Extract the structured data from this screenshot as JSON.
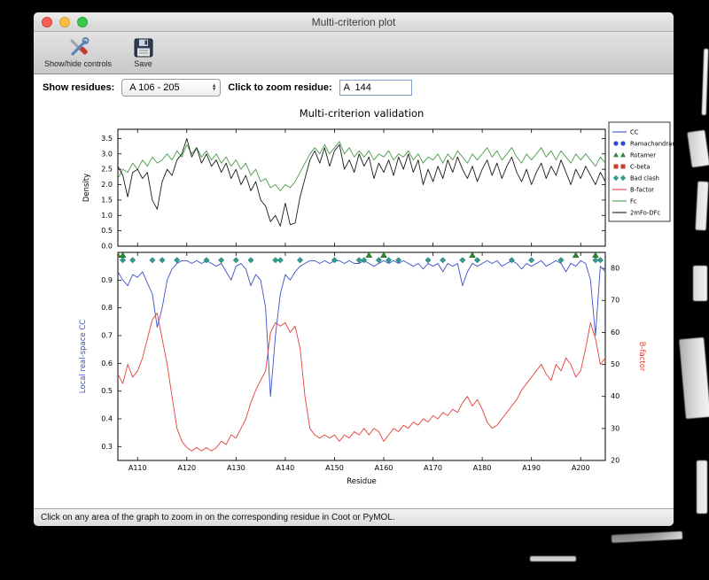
{
  "window": {
    "title": "Multi-criterion plot",
    "toolbar": {
      "show_hide_label": "Show/hide controls",
      "save_label": "Save"
    },
    "controls": {
      "show_residues_label": "Show residues:",
      "show_residues_value": "A 106 - 205",
      "zoom_residue_label": "Click to zoom residue:",
      "zoom_residue_value": "A  144"
    },
    "status_bar": "Click on any area of the graph to zoom in on the corresponding residue in Coot or PyMOL."
  },
  "chart_data": {
    "type": "line",
    "title": "Multi-criterion validation",
    "xlabel": "Residue",
    "x_start": 106,
    "x_end": 205,
    "x_tick_prefix": "A",
    "x_tick_values": [
      110,
      120,
      130,
      140,
      150,
      160,
      170,
      180,
      190,
      200
    ],
    "top_plot": {
      "ylabel": "Density",
      "ylim": [
        0,
        3.8
      ],
      "yticks": [
        0.0,
        0.5,
        1.0,
        1.5,
        2.0,
        2.5,
        3.0,
        3.5
      ],
      "series": [
        {
          "name": "Fc",
          "color": "#4a9c4a",
          "values": [
            2.2,
            2.5,
            2.4,
            2.7,
            2.5,
            2.8,
            2.6,
            2.9,
            2.7,
            2.8,
            3.0,
            2.8,
            3.1,
            2.9,
            3.3,
            3.0,
            3.2,
            2.9,
            3.1,
            2.8,
            3.0,
            2.7,
            2.9,
            2.6,
            2.8,
            2.5,
            2.7,
            2.3,
            2.5,
            2.1,
            2.2,
            1.9,
            2.0,
            1.8,
            2.0,
            1.9,
            2.1,
            2.4,
            2.7,
            3.0,
            3.2,
            3.0,
            3.3,
            3.0,
            3.2,
            3.4,
            3.0,
            3.2,
            2.9,
            3.1,
            2.9,
            3.1,
            2.8,
            3.0,
            2.9,
            3.1,
            2.8,
            3.0,
            2.9,
            3.1,
            2.8,
            3.0,
            2.7,
            2.9,
            2.8,
            3.0,
            2.7,
            3.0,
            2.8,
            3.1,
            2.9,
            2.7,
            3.0,
            2.8,
            3.0,
            3.2,
            2.9,
            3.1,
            2.8,
            3.0,
            3.2,
            2.9,
            2.7,
            3.0,
            2.8,
            3.0,
            3.2,
            2.9,
            3.1,
            2.8,
            3.1,
            2.9,
            2.7,
            3.0,
            2.8,
            3.0,
            2.8,
            2.6,
            2.9,
            2.7
          ]
        },
        {
          "name": "2mFo-DFc",
          "color": "#1a1a1a",
          "values": [
            2.6,
            2.3,
            1.6,
            2.4,
            2.5,
            2.2,
            2.4,
            1.5,
            1.2,
            2.1,
            2.5,
            2.3,
            2.8,
            3.0,
            3.5,
            2.9,
            3.2,
            2.7,
            3.0,
            2.6,
            2.8,
            2.4,
            2.7,
            2.2,
            2.5,
            2.0,
            2.3,
            1.8,
            2.1,
            1.5,
            1.3,
            0.8,
            1.0,
            0.65,
            1.4,
            0.7,
            0.75,
            1.6,
            2.2,
            2.8,
            3.1,
            2.7,
            3.2,
            2.6,
            3.1,
            3.3,
            2.5,
            2.8,
            2.4,
            3.0,
            2.6,
            2.9,
            2.2,
            2.7,
            2.4,
            2.8,
            2.3,
            2.9,
            2.5,
            3.0,
            2.4,
            2.8,
            2.0,
            2.5,
            2.1,
            2.6,
            2.2,
            2.8,
            2.4,
            2.9,
            2.5,
            2.2,
            2.6,
            2.1,
            2.5,
            2.8,
            2.3,
            2.7,
            2.2,
            2.6,
            2.9,
            2.4,
            2.1,
            2.5,
            2.0,
            2.4,
            2.7,
            2.2,
            2.6,
            2.3,
            2.8,
            2.4,
            2.0,
            2.5,
            2.2,
            2.6,
            2.3,
            2.0,
            2.4,
            2.1
          ]
        }
      ]
    },
    "bottom_plot": {
      "ylabel_left": "Local real-space CC",
      "ylabel_right": "B-factor",
      "ylim_left": [
        0.25,
        1.0
      ],
      "yticks_left": [
        0.3,
        0.4,
        0.5,
        0.6,
        0.7,
        0.8,
        0.9
      ],
      "ylim_right": [
        20,
        85
      ],
      "yticks_right": [
        20,
        30,
        40,
        50,
        60,
        70,
        80
      ],
      "series": [
        {
          "name": "CC",
          "axis": "left",
          "color": "#3a50c8",
          "values": [
            0.93,
            0.9,
            0.88,
            0.92,
            0.91,
            0.93,
            0.89,
            0.85,
            0.73,
            0.8,
            0.9,
            0.94,
            0.96,
            0.97,
            0.97,
            0.96,
            0.97,
            0.96,
            0.97,
            0.96,
            0.95,
            0.96,
            0.93,
            0.9,
            0.95,
            0.96,
            0.94,
            0.88,
            0.92,
            0.9,
            0.8,
            0.48,
            0.7,
            0.85,
            0.92,
            0.9,
            0.93,
            0.95,
            0.96,
            0.97,
            0.97,
            0.96,
            0.97,
            0.96,
            0.97,
            0.97,
            0.96,
            0.97,
            0.96,
            0.96,
            0.97,
            0.96,
            0.95,
            0.96,
            0.97,
            0.96,
            0.97,
            0.96,
            0.97,
            0.96,
            0.95,
            0.96,
            0.94,
            0.96,
            0.95,
            0.96,
            0.93,
            0.96,
            0.95,
            0.96,
            0.88,
            0.93,
            0.96,
            0.95,
            0.96,
            0.97,
            0.96,
            0.97,
            0.95,
            0.96,
            0.97,
            0.96,
            0.94,
            0.96,
            0.95,
            0.96,
            0.97,
            0.95,
            0.96,
            0.97,
            0.96,
            0.93,
            0.96,
            0.95,
            0.97,
            0.96,
            0.9,
            0.7,
            0.95,
            0.93
          ]
        },
        {
          "name": "B-factor",
          "axis": "right",
          "color": "#e04038",
          "values": [
            47,
            44,
            50,
            46,
            48,
            52,
            58,
            64,
            66,
            58,
            50,
            40,
            30,
            26,
            24,
            23,
            24,
            23,
            24,
            23,
            24,
            26,
            25,
            28,
            27,
            30,
            33,
            38,
            42,
            45,
            48,
            60,
            63,
            62,
            63,
            60,
            62,
            55,
            40,
            30,
            28,
            27,
            28,
            27,
            28,
            26,
            28,
            27,
            29,
            28,
            30,
            28,
            30,
            29,
            26,
            28,
            30,
            29,
            31,
            30,
            32,
            31,
            33,
            32,
            34,
            33,
            35,
            34,
            36,
            35,
            38,
            40,
            37,
            39,
            36,
            32,
            30,
            31,
            33,
            35,
            37,
            39,
            42,
            44,
            46,
            48,
            50,
            47,
            45,
            50,
            48,
            52,
            50,
            46,
            48,
            55,
            63,
            58,
            50,
            52
          ]
        }
      ],
      "markers": [
        {
          "name": "Bad clash",
          "shape": "diamond",
          "color": "#2e9c8e",
          "y": 0.972,
          "residues": [
            107,
            109,
            113,
            115,
            118,
            124,
            127,
            130,
            133,
            138,
            139,
            143,
            150,
            155,
            156,
            159,
            161,
            163,
            169,
            172,
            176,
            179,
            186,
            190,
            196,
            203,
            204
          ]
        },
        {
          "name": "Rotamer",
          "shape": "triangle",
          "color": "#2e8b2e",
          "y": 0.99,
          "residues": [
            106,
            107,
            157,
            160,
            178,
            199,
            203
          ]
        }
      ]
    },
    "legend": [
      {
        "label": "CC",
        "type": "line",
        "color": "#3a50c8"
      },
      {
        "label": "Ramachandran",
        "type": "circles",
        "color": "#2b4bd0"
      },
      {
        "label": "Rotamer",
        "type": "triangles",
        "color": "#2e8b2e"
      },
      {
        "label": "C-beta",
        "type": "squares",
        "color": "#d03a30"
      },
      {
        "label": "Bad clash",
        "type": "diamonds",
        "color": "#2e9c8e"
      },
      {
        "label": "B-factor",
        "type": "line",
        "color": "#e04038"
      },
      {
        "label": "Fc",
        "type": "line",
        "color": "#4a9c4a"
      },
      {
        "label": "2mFo-DFc",
        "type": "line",
        "color": "#1a1a1a"
      }
    ]
  }
}
